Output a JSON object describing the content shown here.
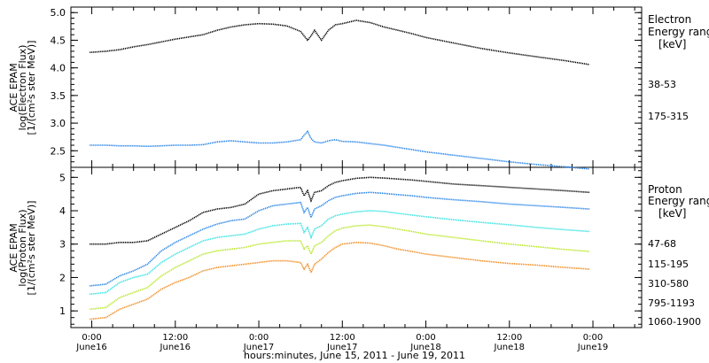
{
  "chart_data": [
    {
      "type": "line",
      "ylabel": [
        "ACE EPAM",
        "log(Electron Flux)",
        "[1/(cm²s ster MeV)]"
      ],
      "ylim": [
        2.2,
        5.1
      ],
      "yticks": [
        "2.5",
        "3.0",
        "3.5",
        "4.0",
        "4.5",
        "5.0"
      ],
      "legend": {
        "title": [
          "Electron",
          "Energy ranges",
          "[keV]"
        ],
        "placement": "right"
      },
      "x": [
        -0.3,
        2,
        4,
        6,
        8,
        10,
        12,
        14,
        16,
        18,
        20,
        22,
        24,
        26,
        28,
        30,
        30.5,
        31,
        31.5,
        32,
        33,
        34,
        35,
        36,
        38,
        40,
        42,
        44,
        46,
        48,
        52,
        56,
        60,
        64,
        68,
        71.5
      ],
      "series": [
        {
          "name": "38-53",
          "color": "#000000",
          "values": [
            4.28,
            4.3,
            4.33,
            4.38,
            4.42,
            4.47,
            4.52,
            4.56,
            4.6,
            4.68,
            4.74,
            4.78,
            4.8,
            4.79,
            4.76,
            4.66,
            4.58,
            4.5,
            4.58,
            4.68,
            4.5,
            4.68,
            4.78,
            4.8,
            4.86,
            4.82,
            4.74,
            4.68,
            4.62,
            4.55,
            4.45,
            4.35,
            4.27,
            4.2,
            4.13,
            4.06
          ]
        },
        {
          "name": "175-315",
          "color": "#1f7fe6",
          "values": [
            2.6,
            2.6,
            2.59,
            2.59,
            2.58,
            2.59,
            2.6,
            2.6,
            2.61,
            2.66,
            2.68,
            2.66,
            2.64,
            2.64,
            2.66,
            2.7,
            2.78,
            2.85,
            2.72,
            2.66,
            2.64,
            2.68,
            2.7,
            2.67,
            2.66,
            2.63,
            2.6,
            2.56,
            2.52,
            2.48,
            2.42,
            2.36,
            2.3,
            2.25,
            2.21,
            2.17
          ]
        }
      ]
    },
    {
      "type": "line",
      "ylabel": [
        "ACE EPAM",
        "log(Proton Flux)",
        "[1/(cm²s ster MeV)]"
      ],
      "ylim": [
        0.5,
        5.3
      ],
      "yticks": [
        "1",
        "2",
        "3",
        "4",
        "5"
      ],
      "legend": {
        "title": [
          "Proton",
          "Energy ranges",
          "[keV]"
        ],
        "placement": "right"
      },
      "x": [
        -0.3,
        2,
        4,
        6,
        8,
        10,
        12,
        14,
        16,
        18,
        20,
        22,
        24,
        26,
        28,
        30,
        30.5,
        31,
        31.5,
        32,
        33,
        34,
        35,
        36,
        38,
        40,
        42,
        44,
        46,
        48,
        52,
        56,
        60,
        64,
        68,
        71.5
      ],
      "series": [
        {
          "name": "47-68",
          "color": "#000000",
          "values": [
            3.0,
            3.0,
            3.05,
            3.05,
            3.1,
            3.3,
            3.5,
            3.7,
            3.95,
            4.05,
            4.1,
            4.2,
            4.5,
            4.6,
            4.65,
            4.7,
            4.45,
            4.6,
            4.3,
            4.55,
            4.6,
            4.75,
            4.85,
            4.9,
            4.97,
            5.0,
            4.98,
            4.95,
            4.92,
            4.88,
            4.8,
            4.75,
            4.7,
            4.65,
            4.6,
            4.55
          ]
        },
        {
          "name": "115-195",
          "color": "#1f7fe6",
          "values": [
            1.75,
            1.8,
            2.05,
            2.2,
            2.4,
            2.8,
            3.05,
            3.25,
            3.45,
            3.6,
            3.7,
            3.75,
            4.0,
            4.15,
            4.2,
            4.25,
            3.95,
            4.1,
            3.8,
            4.05,
            4.15,
            4.3,
            4.4,
            4.45,
            4.52,
            4.55,
            4.52,
            4.48,
            4.45,
            4.4,
            4.33,
            4.27,
            4.2,
            4.15,
            4.1,
            4.05
          ]
        },
        {
          "name": "310-580",
          "color": "#2ee0e0",
          "values": [
            1.5,
            1.55,
            1.85,
            2.0,
            2.1,
            2.45,
            2.7,
            2.9,
            3.1,
            3.2,
            3.25,
            3.3,
            3.45,
            3.55,
            3.6,
            3.62,
            3.35,
            3.5,
            3.2,
            3.45,
            3.55,
            3.75,
            3.85,
            3.9,
            3.97,
            4.0,
            3.98,
            3.92,
            3.87,
            3.82,
            3.73,
            3.65,
            3.58,
            3.5,
            3.43,
            3.38
          ]
        },
        {
          "name": "795-1193",
          "color": "#b5e61d",
          "values": [
            1.05,
            1.1,
            1.4,
            1.55,
            1.7,
            2.05,
            2.3,
            2.5,
            2.7,
            2.8,
            2.85,
            2.9,
            3.0,
            3.05,
            3.1,
            3.1,
            2.85,
            2.95,
            2.7,
            2.95,
            3.05,
            3.25,
            3.4,
            3.48,
            3.55,
            3.57,
            3.52,
            3.45,
            3.38,
            3.3,
            3.2,
            3.1,
            3.0,
            2.92,
            2.84,
            2.78
          ]
        },
        {
          "name": "1060-1900",
          "color": "#f0881a",
          "values": [
            0.75,
            0.8,
            1.05,
            1.2,
            1.35,
            1.65,
            1.85,
            2.0,
            2.2,
            2.3,
            2.35,
            2.4,
            2.45,
            2.5,
            2.5,
            2.45,
            2.25,
            2.4,
            2.15,
            2.4,
            2.55,
            2.75,
            2.9,
            3.0,
            3.05,
            3.03,
            2.95,
            2.85,
            2.78,
            2.7,
            2.6,
            2.5,
            2.42,
            2.37,
            2.3,
            2.25
          ]
        }
      ]
    }
  ],
  "xaxis": {
    "title": "hours:minutes, June 15, 2011 - June 19, 2011",
    "range_hours": [
      -3,
      79
    ],
    "ticks": [
      {
        "hour": 0,
        "time": "0:00",
        "date": "June16"
      },
      {
        "hour": 12,
        "time": "12:00",
        "date": "June16"
      },
      {
        "hour": 24,
        "time": "0:00",
        "date": "June17"
      },
      {
        "hour": 36,
        "time": "12:00",
        "date": "June17"
      },
      {
        "hour": 48,
        "time": "0:00",
        "date": "June18"
      },
      {
        "hour": 60,
        "time": "12:00",
        "date": "June18"
      },
      {
        "hour": 72,
        "time": "0:00",
        "date": "June19"
      }
    ],
    "minor_step_hours": 3
  }
}
